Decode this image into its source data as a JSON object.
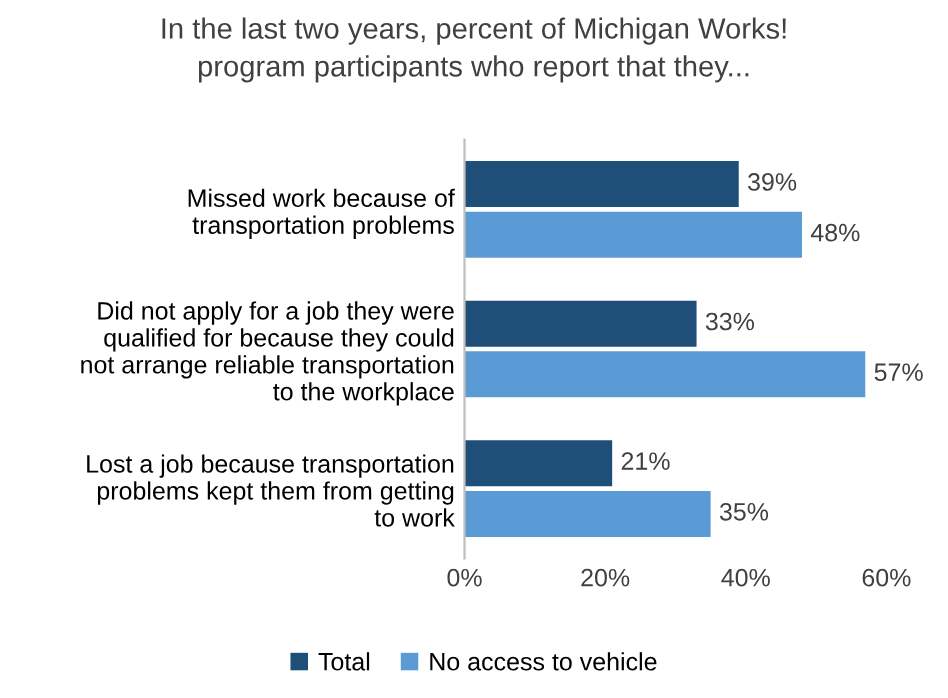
{
  "chart_data": {
    "type": "bar",
    "orientation": "horizontal",
    "title": "In the last two years, percent of Michigan Works!\nprogram participants who report that they...",
    "categories": [
      "Missed work because of\ntransportation problems",
      "Did not apply for a job they were\nqualified for because they could\nnot arrange reliable transportation\nto the workplace",
      "Lost a job because transportation\nproblems kept them from getting\nto work"
    ],
    "series": [
      {
        "name": "Total",
        "color": "#1f4e79",
        "values": [
          39,
          33,
          21
        ],
        "value_labels": [
          "39%",
          "33%",
          "21%"
        ]
      },
      {
        "name": "No access to vehicle",
        "color": "#5b9bd5",
        "values": [
          48,
          57,
          35
        ],
        "value_labels": [
          "48%",
          "57%",
          "35%"
        ]
      }
    ],
    "xlim": [
      0,
      60
    ],
    "xticks": [
      {
        "value": 0,
        "label": "0%"
      },
      {
        "value": 20,
        "label": "20%"
      },
      {
        "value": 40,
        "label": "40%"
      },
      {
        "value": 60,
        "label": "60%"
      }
    ],
    "grid": false,
    "legend": "bottom"
  }
}
